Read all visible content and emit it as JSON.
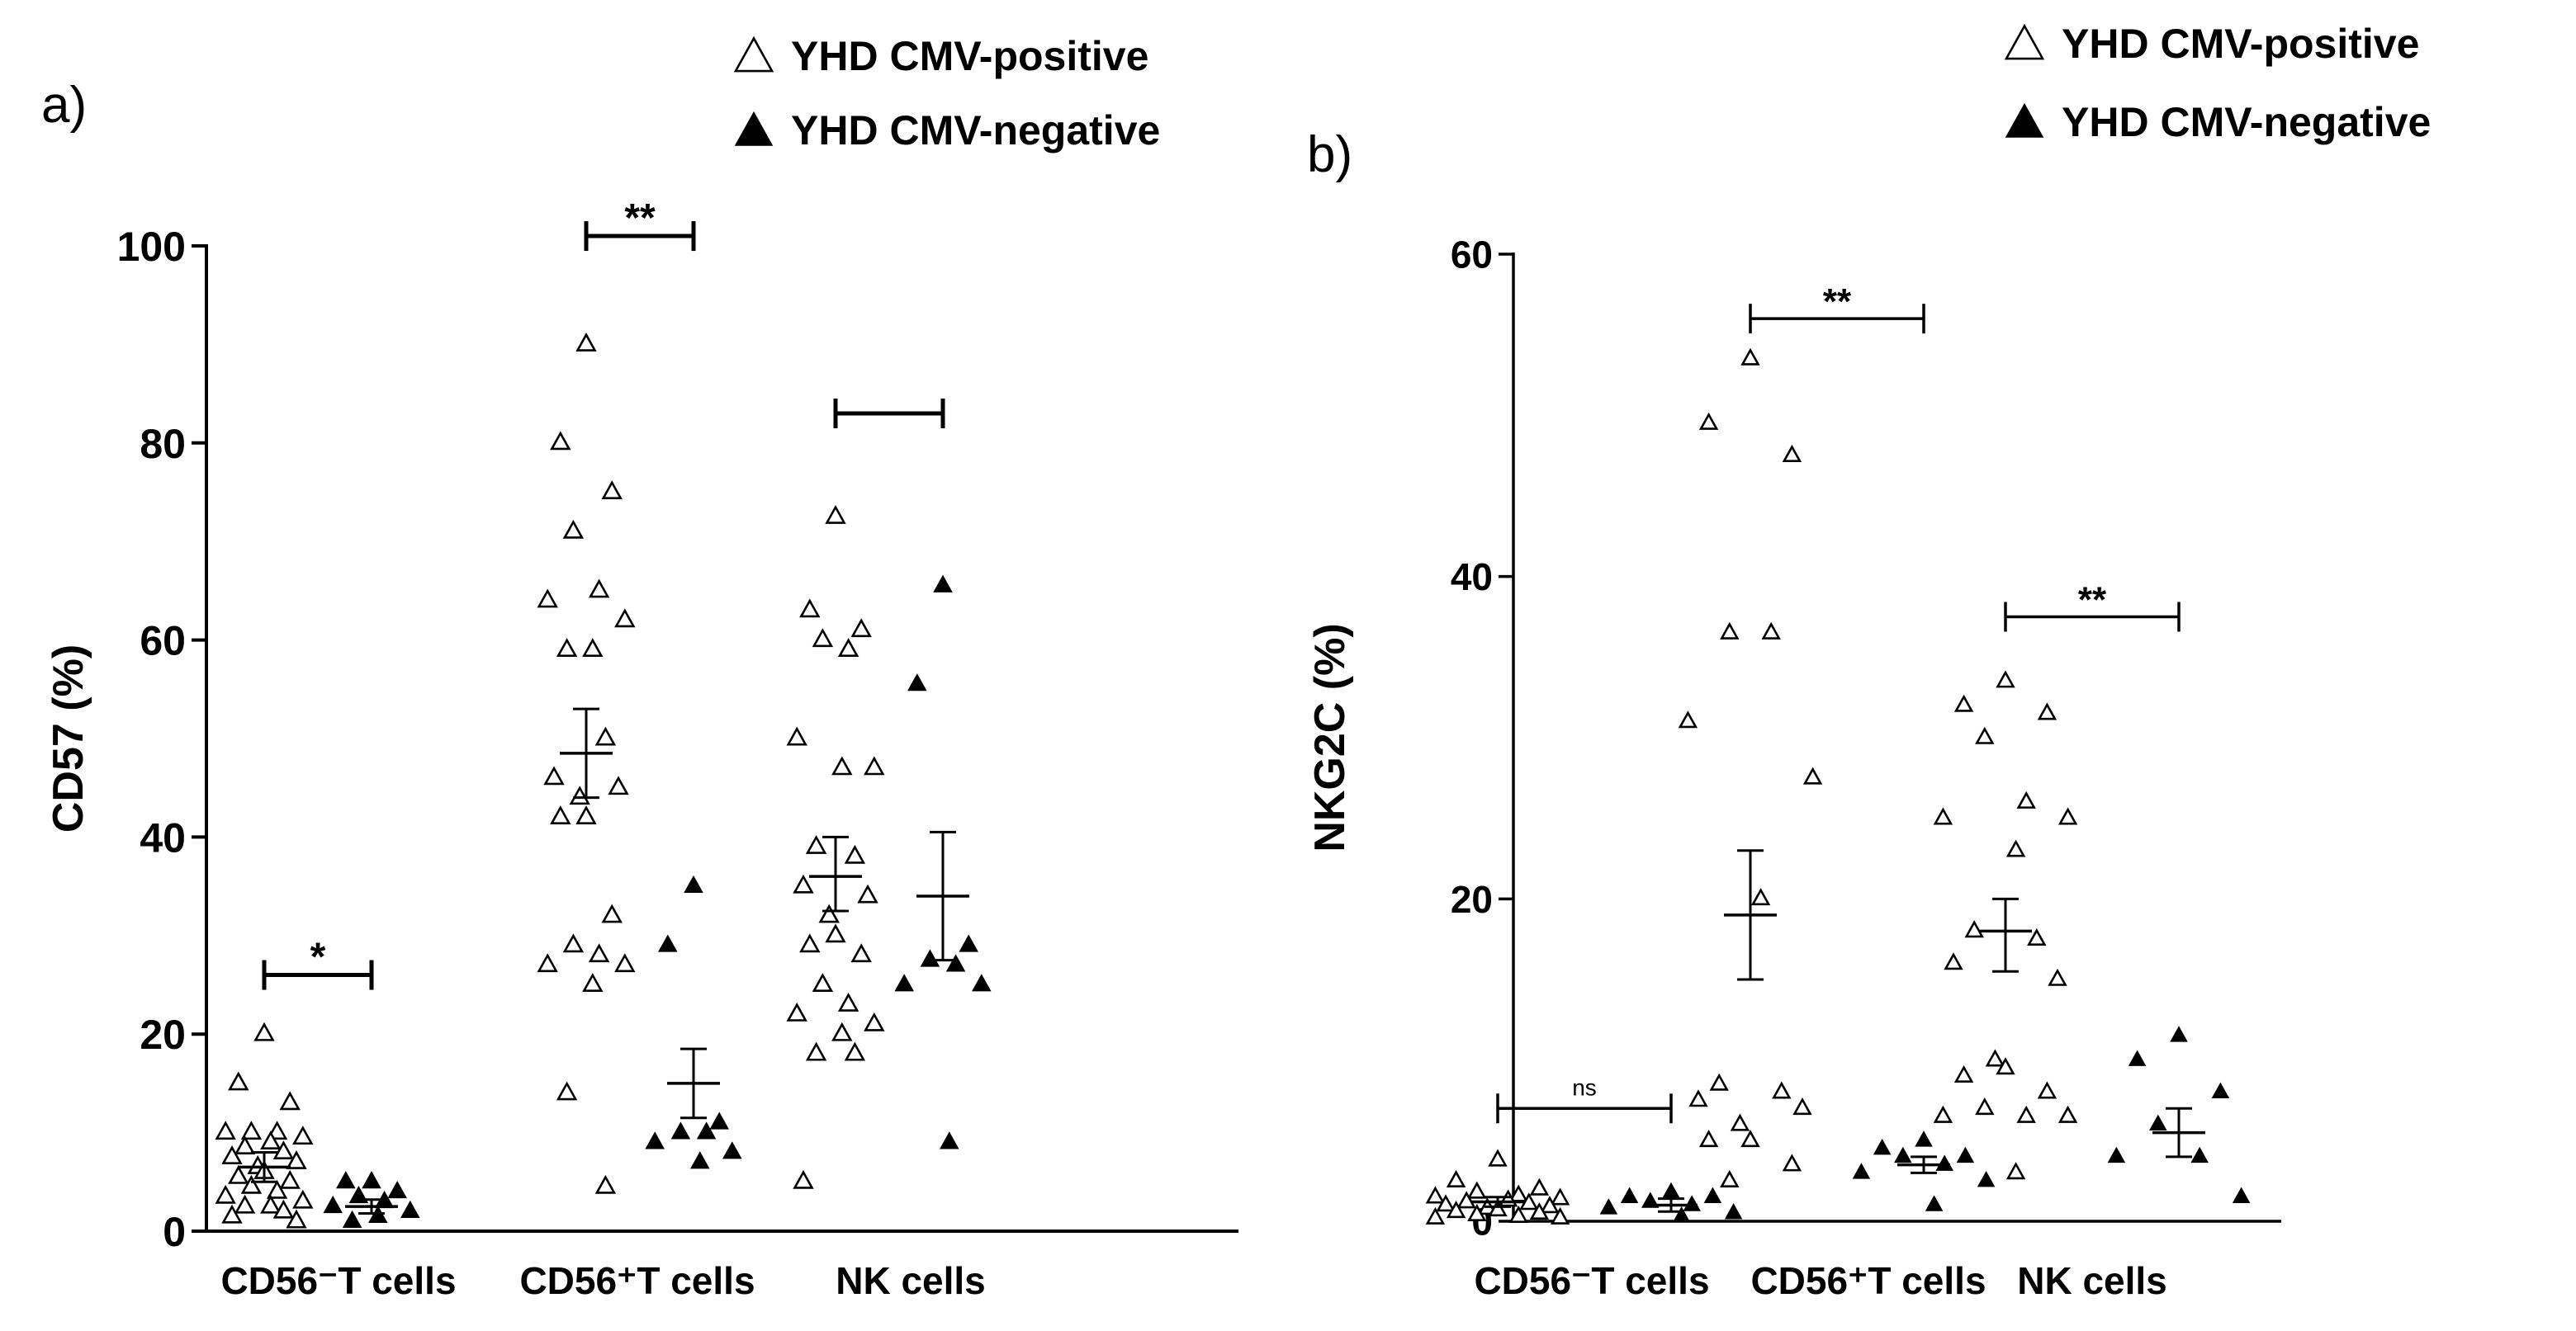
{
  "colors": {
    "ink": "#000000",
    "background": "#ffffff"
  },
  "chart_data": [
    {
      "panel_label": "a)",
      "type": "scatter",
      "ylabel": "CD57 (%)",
      "ylim": [
        0,
        100
      ],
      "yticks": [
        "0",
        "20",
        "40",
        "60",
        "80",
        "100"
      ],
      "categories": [
        "CD56⁻T cells",
        "CD56⁺T cells",
        "NK cells"
      ],
      "legend": {
        "placement": "top-right",
        "entries": [
          {
            "marker": "△",
            "label": "YHD CMV-positive"
          },
          {
            "marker": "▲",
            "label": "YHD CMV-negative"
          }
        ]
      },
      "series": [
        {
          "name": "YHD CMV-positive",
          "marker": "open-triangle",
          "groups": [
            {
              "category": "CD56⁻T cells",
              "values": [
                20,
                15,
                13,
                10,
                10,
                10,
                9.5,
                9,
                8.5,
                8,
                7.5,
                7,
                6.5,
                6,
                5.5,
                5,
                4.5,
                4,
                3.5,
                3,
                2.5,
                2.5,
                2,
                1.5,
                1
              ],
              "mean": 6.5,
              "sem_low": 5,
              "sem_high": 8
            },
            {
              "category": "CD56⁺T cells",
              "values": [
                90,
                80,
                75,
                71,
                65,
                64,
                62,
                59,
                59,
                50,
                46,
                45,
                44,
                42,
                42,
                32,
                29,
                28,
                27,
                27,
                25,
                14,
                4.5
              ],
              "mean": 48.5,
              "sem_low": 44,
              "sem_high": 53
            },
            {
              "category": "NK cells",
              "values": [
                72.5,
                63,
                61,
                60,
                59,
                50,
                47,
                47,
                39,
                38,
                35,
                34,
                32,
                30,
                29,
                28,
                25,
                23,
                22,
                21,
                20,
                18,
                18,
                5
              ],
              "mean": 36,
              "sem_low": 32.5,
              "sem_high": 40
            }
          ]
        },
        {
          "name": "YHD CMV-negative",
          "marker": "filled-triangle",
          "groups": [
            {
              "category": "CD56⁻T cells",
              "values": [
                5,
                5,
                4,
                3.5,
                3,
                2.5,
                2,
                1.5,
                1
              ],
              "mean": 2.5,
              "sem_low": 1.8,
              "sem_high": 3.2
            },
            {
              "category": "CD56⁺T cells",
              "values": [
                35,
                29,
                11,
                10,
                10,
                9,
                8,
                7
              ],
              "mean": 15,
              "sem_low": 11.5,
              "sem_high": 18.5
            },
            {
              "category": "NK cells",
              "values": [
                65.5,
                55.5,
                29,
                27.5,
                27,
                25,
                25,
                9
              ],
              "mean": 34,
              "sem_low": 27.5,
              "sem_high": 40.5
            }
          ]
        }
      ],
      "significance": [
        {
          "category": "CD56⁻T cells",
          "label": "*",
          "y": 26
        },
        {
          "category": "CD56⁺T cells",
          "label": "**",
          "y": 101
        },
        {
          "category": "NK cells",
          "label": "",
          "y": 83
        }
      ]
    },
    {
      "panel_label": "b)",
      "type": "scatter",
      "ylabel": "NKG2C (%)",
      "ylim": [
        0,
        60
      ],
      "yticks": [
        "0",
        "20",
        "40",
        "60"
      ],
      "categories": [
        "CD56⁻T cells",
        "CD56⁺T cells",
        "NK cells"
      ],
      "legend": {
        "placement": "top-right",
        "entries": [
          {
            "marker": "△",
            "label": "YHD CMV-positive"
          },
          {
            "marker": "▲",
            "label": "YHD CMV-negative"
          }
        ]
      },
      "series": [
        {
          "name": "YHD CMV-positive",
          "marker": "open-triangle",
          "groups": [
            {
              "category": "CD56⁻T cells",
              "values": [
                3.8,
                2.5,
                2,
                1.8,
                1.6,
                1.5,
                1.4,
                1.3,
                1.2,
                1.1,
                1,
                0.9,
                0.8,
                0.7,
                0.6,
                0.5,
                0.4,
                0.3,
                0.2,
                0.2
              ],
              "mean": 1.2,
              "sem_low": 0.9,
              "sem_high": 1.5
            },
            {
              "category": "CD56⁺T cells",
              "values": [
                53.5,
                49.5,
                47.5,
                36.5,
                36.5,
                31,
                27.5,
                20,
                8.5,
                8,
                7.5,
                7,
                6,
                5,
                5,
                3.5,
                2.5
              ],
              "mean": 19,
              "sem_low": 15,
              "sem_high": 23
            },
            {
              "category": "NK cells",
              "values": [
                33.5,
                32,
                31.5,
                30,
                26,
                25,
                25,
                23,
                18,
                17.5,
                16,
                15,
                10,
                9.5,
                9,
                8,
                7,
                6.5,
                6.5,
                6.5,
                3
              ],
              "mean": 18,
              "sem_low": 15.5,
              "sem_high": 20
            }
          ]
        },
        {
          "name": "YHD CMV-negative",
          "marker": "filled-triangle",
          "groups": [
            {
              "category": "CD56⁻T cells",
              "values": [
                1.8,
                1.5,
                1.5,
                1.2,
                1,
                0.8,
                0.5,
                0.3
              ],
              "mean": 1,
              "sem_low": 0.6,
              "sem_high": 1.4
            },
            {
              "category": "CD56⁺T cells",
              "values": [
                5,
                4.5,
                4,
                4,
                3.5,
                3,
                2.5,
                1
              ],
              "mean": 3.5,
              "sem_low": 3,
              "sem_high": 4
            },
            {
              "category": "NK cells",
              "values": [
                11.5,
                10,
                8,
                6,
                4,
                4,
                1.5
              ],
              "mean": 5.5,
              "sem_low": 4,
              "sem_high": 7
            }
          ]
        }
      ],
      "significance": [
        {
          "category": "CD56⁻T cells",
          "label": "ns",
          "y": 7
        },
        {
          "category": "CD56⁺T cells",
          "label": "**",
          "y": 56
        },
        {
          "category": "NK cells",
          "label": "**",
          "y": 37.5
        }
      ]
    }
  ]
}
